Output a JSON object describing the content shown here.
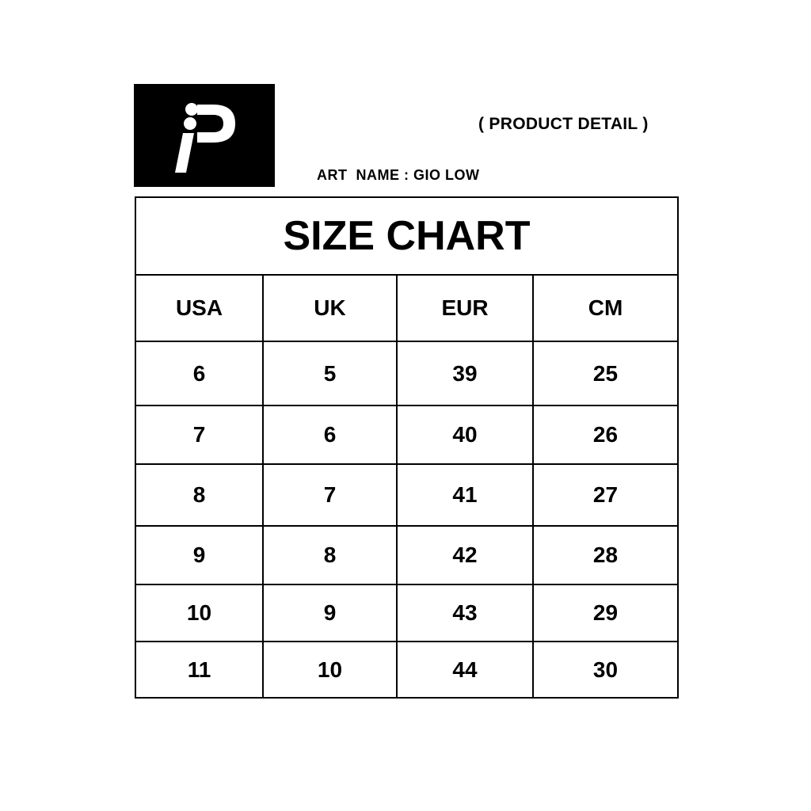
{
  "logo": {
    "text": "iP",
    "background": "#000000",
    "foreground": "#ffffff"
  },
  "header": {
    "product_detail": "( PRODUCT DETAIL )",
    "art_name_label": "ART  NAME :",
    "art_name_value": "GIO LOW"
  },
  "chart_data": {
    "type": "table",
    "title": "SIZE CHART",
    "columns": [
      "USA",
      "UK",
      "EUR",
      "CM"
    ],
    "rows": [
      [
        "6",
        "5",
        "39",
        "25"
      ],
      [
        "7",
        "6",
        "40",
        "26"
      ],
      [
        "8",
        "7",
        "41",
        "27"
      ],
      [
        "9",
        "8",
        "42",
        "28"
      ],
      [
        "10",
        "9",
        "43",
        "29"
      ],
      [
        "11",
        "10",
        "44",
        "30"
      ]
    ]
  }
}
